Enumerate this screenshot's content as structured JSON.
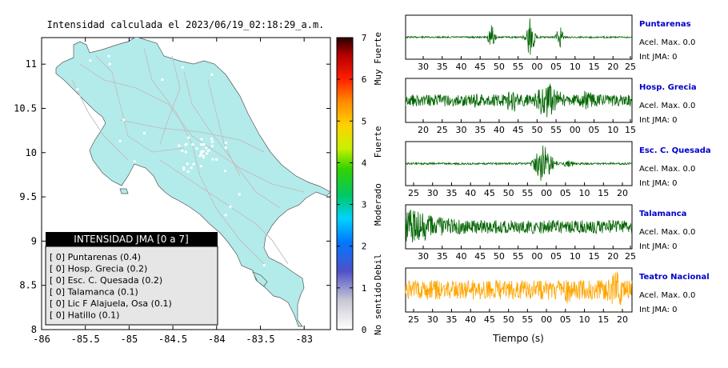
{
  "map": {
    "title": "Intensidad calculada el 2023/06/19_02:18:29_a.m.",
    "x_ticks": [
      "-86",
      "-85.5",
      "-85",
      "-84.5",
      "-84",
      "-83.5",
      "-83"
    ],
    "x_tick_values": [
      -86,
      -85.5,
      -85,
      -84.5,
      -84,
      -83.5,
      -83
    ],
    "y_ticks": [
      "11",
      "10.5",
      "10",
      "9.5",
      "9",
      "8.5",
      "8"
    ],
    "y_tick_values": [
      11,
      10.5,
      10,
      9.5,
      9,
      8.5,
      8
    ],
    "xlim": [
      -86,
      -82.7
    ],
    "ylim": [
      8,
      11.3
    ],
    "land_color": "#b3ebeb",
    "legend": {
      "title": "INTENSIDAD JMA [0 a 7]",
      "items": [
        "[ 0]  Puntarenas (0.4)",
        "[ 0]  Hosp. Grecia (0.2)",
        "[ 0]  Esc. C. Quesada (0.2)",
        "[ 0]  Talamanca (0.1)",
        "[ 0]  Lic F Alajuela, Osa (0.1)",
        "[ 0]  Hatillo (0.1)"
      ]
    }
  },
  "colorbar": {
    "ticks": [
      "7",
      "6",
      "5",
      "4",
      "3",
      "2",
      "1",
      "0"
    ],
    "tick_values": [
      7,
      6,
      5,
      4,
      3,
      2,
      1,
      0
    ],
    "labels": [
      "Muy Fuerte",
      "Fuerte",
      "Moderado",
      "Debil",
      "No sentido"
    ],
    "label_values": [
      6.5,
      4.5,
      3.0,
      1.5,
      0.5
    ]
  },
  "chart_data": [
    {
      "type": "line",
      "station": "Puntarenas",
      "accel": "Acel. Max. 0.0",
      "int": "Int JMA: 0",
      "color": "#006400",
      "tick_labels": [
        "30",
        "35",
        "40",
        "45",
        "50",
        "55",
        "00",
        "05",
        "10",
        "15",
        "20",
        "25"
      ],
      "bursts": [
        [
          0.38,
          0.65,
          0.015
        ],
        [
          0.55,
          1.0,
          0.02
        ],
        [
          0.68,
          0.6,
          0.015
        ]
      ],
      "base_noise": 0.04
    },
    {
      "type": "line",
      "station": "Hosp. Grecia",
      "accel": "Acel. Max. 0.0",
      "int": "Int JMA: 0",
      "color": "#006400",
      "tick_labels": [
        "20",
        "25",
        "30",
        "35",
        "40",
        "45",
        "50",
        "55",
        "00",
        "05",
        "10",
        "15"
      ],
      "bursts": [
        [
          0.32,
          0.5,
          0.03
        ],
        [
          0.47,
          0.7,
          0.03
        ],
        [
          0.63,
          1.0,
          0.06
        ],
        [
          0.8,
          0.5,
          0.05
        ]
      ],
      "base_noise": 0.3
    },
    {
      "type": "line",
      "station": "Esc. C. Quesada",
      "accel": "Acel. Max. 0.0",
      "int": "Int JMA: 0",
      "color": "#006400",
      "tick_labels": [
        "25",
        "30",
        "35",
        "40",
        "45",
        "50",
        "55",
        "00",
        "05",
        "10",
        "15",
        "20"
      ],
      "bursts": [
        [
          0.61,
          1.0,
          0.04
        ],
        [
          0.72,
          0.2,
          0.03
        ]
      ],
      "base_noise": 0.05
    },
    {
      "type": "line",
      "station": "Talamanca",
      "accel": "Acel. Max. 0.0",
      "int": "Int JMA: 0",
      "color": "#006400",
      "tick_labels": [
        "30",
        "35",
        "40",
        "45",
        "50",
        "55",
        "00",
        "05",
        "10",
        "15",
        "20",
        "25"
      ],
      "bursts": [
        [
          0.03,
          1.0,
          0.25
        ]
      ],
      "base_noise": 0.35
    },
    {
      "type": "line",
      "station": "Teatro Nacional",
      "accel": "Acel. Max. 0.0",
      "int": "Int JMA: 0",
      "color": "#ffa500",
      "tick_labels": [
        "25",
        "30",
        "35",
        "40",
        "45",
        "50",
        "55",
        "00",
        "05",
        "10",
        "15",
        "20"
      ],
      "bursts": [
        [
          0.72,
          0.7,
          0.05
        ],
        [
          0.93,
          1.0,
          0.05
        ]
      ],
      "base_noise": 0.5
    }
  ],
  "xlabel": "Tiempo (s)"
}
